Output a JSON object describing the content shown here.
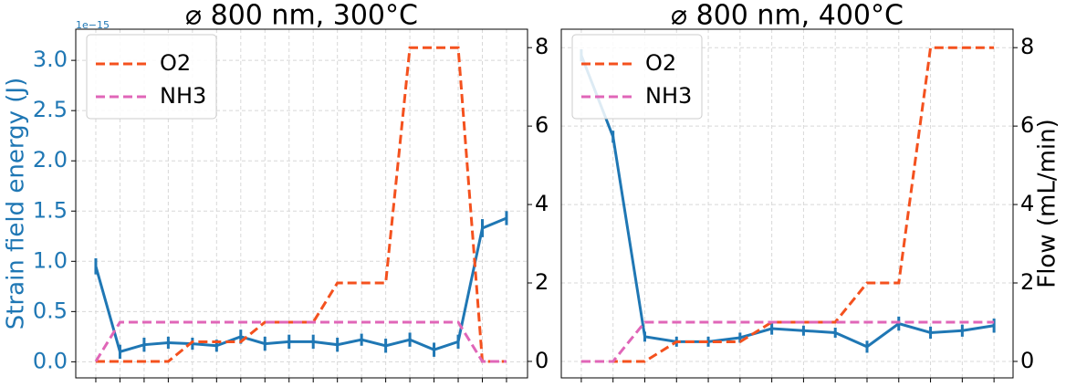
{
  "chart_data": [
    {
      "type": "line",
      "title": "⌀ 800 nm, 300°C",
      "ylabel": "Strain field energy (J)",
      "y_offset_label": "1e−15",
      "x": [
        0,
        1,
        2,
        3,
        4,
        5,
        6,
        7,
        8,
        9,
        10,
        11,
        12,
        13,
        14,
        15,
        16,
        17
      ],
      "xlim": [
        -0.83,
        17.87
      ],
      "ylim": [
        -0.16,
        3.31
      ],
      "yticks": [
        {
          "value": 0,
          "label": "0.0"
        },
        0.5,
        {
          "value": 1,
          "label": "1.0"
        },
        1.5,
        {
          "value": 2,
          "label": "2.0"
        },
        2.5,
        {
          "value": 3,
          "label": "3.0"
        }
      ],
      "y2lim": [
        -0.42,
        8.47
      ],
      "y2ticks": [
        0,
        2,
        4,
        6,
        8
      ],
      "grid": true,
      "legend": "upper-left",
      "series": [
        {
          "color": "#1f77b4",
          "values": [
            0.95,
            0.1,
            0.17,
            0.19,
            0.18,
            0.16,
            0.25,
            0.18,
            0.2,
            0.2,
            0.17,
            0.22,
            0.16,
            0.22,
            0.12,
            0.2,
            1.33,
            1.43
          ],
          "errors": [
            0.08,
            0.07,
            0.07,
            0.06,
            0.06,
            0.06,
            0.07,
            0.07,
            0.07,
            0.07,
            0.07,
            0.06,
            0.07,
            0.07,
            0.07,
            0.07,
            0.09,
            0.07
          ]
        },
        {
          "name": "O2",
          "color": "#f4511e",
          "axis": "y2",
          "dashed": true,
          "values": [
            0,
            0,
            0,
            0,
            0.5,
            0.5,
            0.5,
            1,
            1,
            1,
            2,
            2,
            2,
            8,
            8,
            8,
            0,
            0
          ]
        },
        {
          "name": "NH3",
          "color": "#e066b8",
          "axis": "y2",
          "dashed": true,
          "values": [
            0,
            1,
            1,
            1,
            1,
            1,
            1,
            1,
            1,
            1,
            1,
            1,
            1,
            1,
            1,
            1,
            0,
            0
          ]
        }
      ]
    },
    {
      "type": "line",
      "title": "⌀ 800 nm, 400°C",
      "y2label": "Flow (mL/min)",
      "x": [
        0,
        1,
        2,
        3,
        4,
        5,
        6,
        7,
        8,
        9,
        10,
        11,
        12,
        13
      ],
      "xlim": [
        -0.63,
        13.6
      ],
      "ylim": [
        -0.16,
        3.31
      ],
      "y2lim": [
        -0.42,
        8.47
      ],
      "y2ticks": [
        0,
        2,
        4,
        6,
        8
      ],
      "grid": true,
      "legend": "upper-left",
      "series": [
        {
          "color": "#1f77b4",
          "values": [
            3.05,
            2.24,
            0.25,
            0.2,
            0.2,
            0.24,
            0.33,
            0.31,
            0.29,
            0.15,
            0.38,
            0.29,
            0.31,
            0.36
          ],
          "errors": [
            0.06,
            0.06,
            0.05,
            0.05,
            0.05,
            0.05,
            0.06,
            0.05,
            0.05,
            0.06,
            0.07,
            0.06,
            0.06,
            0.07
          ]
        },
        {
          "name": "O2",
          "color": "#f4511e",
          "axis": "y2",
          "dashed": true,
          "values": [
            0,
            0,
            0,
            0.5,
            0.5,
            0.5,
            1,
            1,
            1,
            2,
            2,
            8,
            8,
            8
          ]
        },
        {
          "name": "NH3",
          "color": "#e066b8",
          "axis": "y2",
          "dashed": true,
          "values": [
            0,
            0,
            1,
            1,
            1,
            1,
            1,
            1,
            1,
            1,
            1,
            1,
            1,
            1
          ]
        }
      ]
    }
  ]
}
